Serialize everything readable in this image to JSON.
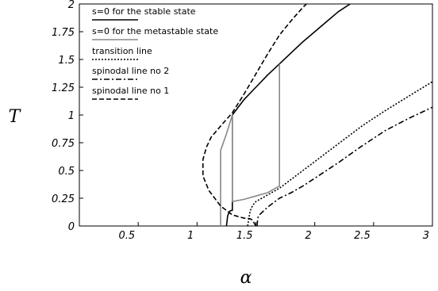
{
  "chart_data": {
    "type": "line",
    "xlabel": "α",
    "ylabel": "T",
    "xlim": [
      0,
      3
    ],
    "ylim": [
      0,
      2
    ],
    "grid": false,
    "legend_position": "top-left",
    "x_ticks": [
      0.5,
      1,
      1.5,
      2,
      2.5,
      3
    ],
    "x_tick_labels": [
      "0.5",
      "1",
      "1.5",
      "2",
      "2.5",
      "3"
    ],
    "y_ticks": [
      0,
      0.25,
      0.5,
      0.75,
      1,
      1.25,
      1.5,
      1.75,
      2
    ],
    "y_tick_labels": [
      "0",
      "0.25",
      "0.5",
      "0.75",
      "1",
      "1.25",
      "1.5",
      "1.75",
      "2"
    ],
    "series": [
      {
        "name": "s=0 for the stable state",
        "color": "#000000",
        "dash": "solid",
        "x": [
          1.25,
          1.26,
          1.27,
          1.28,
          1.29,
          1.3,
          1.3,
          1.4,
          1.5,
          1.6,
          1.7,
          1.8,
          1.9,
          2.0,
          2.1,
          2.2,
          2.3
        ],
        "y": [
          0,
          0.09,
          0.12,
          0.135,
          0.14,
          0.14,
          1.0,
          1.14,
          1.25,
          1.36,
          1.46,
          1.56,
          1.66,
          1.75,
          1.84,
          1.93,
          2.0
        ]
      },
      {
        "name": "s=0 for the metastable state",
        "color": "#888888",
        "dash": "solid",
        "x": [
          1.2,
          1.2,
          1.25,
          1.3,
          1.3,
          1.4,
          1.5,
          1.6,
          1.7,
          1.7
        ],
        "y": [
          0,
          0.68,
          0.83,
          1.0,
          0.22,
          0.24,
          0.27,
          0.3,
          0.36,
          1.46
        ]
      },
      {
        "name": "transition line",
        "color": "#000000",
        "dash": "dotted",
        "x": [
          1.43,
          1.45,
          1.47,
          1.49,
          1.5,
          1.55,
          1.6,
          1.7,
          1.8,
          1.9,
          2.0,
          2.2,
          2.4,
          2.6,
          2.8,
          3.0
        ],
        "y": [
          0.0,
          0.13,
          0.18,
          0.21,
          0.22,
          0.25,
          0.28,
          0.34,
          0.42,
          0.5,
          0.58,
          0.74,
          0.9,
          1.04,
          1.17,
          1.3
        ]
      },
      {
        "name": "spinodal line no 2",
        "color": "#000000",
        "dash": "dashdot",
        "x": [
          1.51,
          1.515,
          1.52,
          1.53,
          1.55,
          1.6,
          1.7,
          1.8,
          1.9,
          2.0,
          2.2,
          2.4,
          2.6,
          2.8,
          3.0
        ],
        "y": [
          0.0,
          0.06,
          0.085,
          0.1,
          0.12,
          0.17,
          0.25,
          0.3,
          0.36,
          0.43,
          0.57,
          0.72,
          0.86,
          0.97,
          1.07
        ]
      },
      {
        "name": "spinodal line no 1",
        "color": "#000000",
        "dash": "dashed",
        "x": [
          1.5,
          1.47,
          1.45,
          1.42,
          1.4,
          1.3,
          1.2,
          1.1,
          1.05,
          1.05,
          1.08,
          1.12,
          1.2,
          1.3,
          1.4,
          1.5,
          1.6,
          1.7,
          1.8,
          1.9,
          2.0,
          2.05
        ],
        "y": [
          0.0,
          0.055,
          0.065,
          0.07,
          0.07,
          0.1,
          0.18,
          0.32,
          0.45,
          0.6,
          0.71,
          0.8,
          0.9,
          1.02,
          1.19,
          1.37,
          1.55,
          1.72,
          1.85,
          1.97,
          2.07,
          2.1
        ]
      }
    ]
  }
}
